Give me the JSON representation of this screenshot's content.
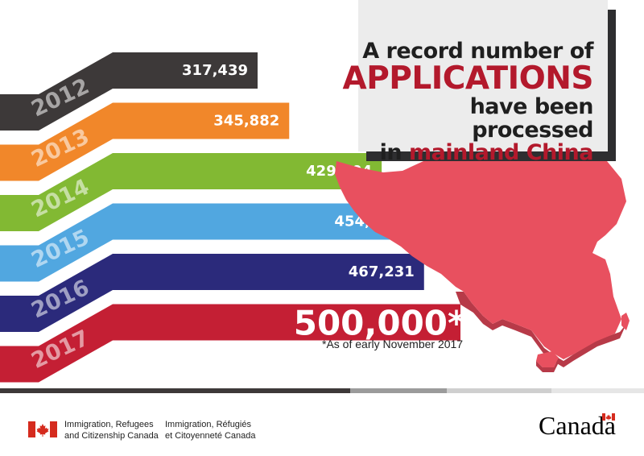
{
  "chart_data": {
    "type": "bar",
    "orientation": "horizontal",
    "title": "A record number of APPLICATIONS have been processed in mainland China",
    "title_lines": [
      "A record number of",
      "APPLICATIONS",
      "have been processed",
      "in",
      "mainland China"
    ],
    "categories": [
      "2012",
      "2013",
      "2014",
      "2015",
      "2016",
      "2017"
    ],
    "values": [
      317439,
      345882,
      429104,
      454655,
      467231,
      500000
    ],
    "value_labels": [
      "317,439",
      "345,882",
      "429,104",
      "454,655",
      "467,231",
      "500,000*"
    ],
    "colors": [
      "#3d3939",
      "#f1872a",
      "#82b933",
      "#51a7e0",
      "#2b2a7b",
      "#c41f34"
    ],
    "footnote": "*As of early November 2017",
    "legend": "none",
    "grid": false
  },
  "map": {
    "icon": "china-map-icon",
    "color": "#e8505f",
    "side_color": "#b73a48"
  },
  "footer": {
    "dept_en_1": "Immigration, Refugees",
    "dept_en_2": "and Citizenship Canada",
    "dept_fr_1": "Immigration, Réfugiés",
    "dept_fr_2": "et Citoyenneté Canada",
    "wordmark": "Canada",
    "rule_colors": [
      "#3d3939",
      "#9b9b9b",
      "#cfcfcf",
      "#e6e6e6"
    ]
  }
}
